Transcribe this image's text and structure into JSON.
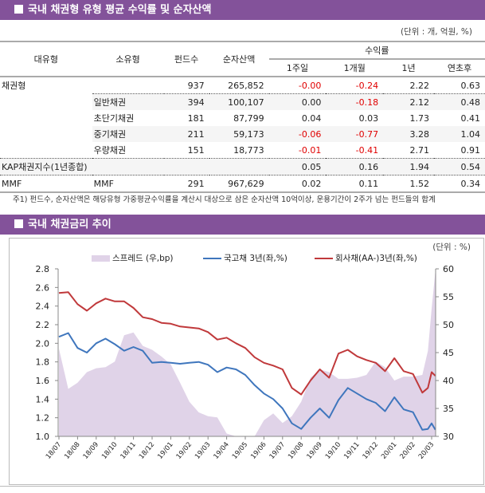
{
  "section1": {
    "title": "국내 채권형 유형 평균 수익률 및 순자산액",
    "unit": "(단위 : 개, 억원, %)",
    "headers": {
      "major": "대유형",
      "minor": "소유형",
      "funds": "펀드수",
      "assets": "순자산액",
      "return": "수익률",
      "w1": "1주일",
      "m1": "1개월",
      "y1": "1년",
      "ytd": "연초후"
    },
    "rows": [
      {
        "major": "채권형",
        "minor": "",
        "funds": "937",
        "assets": "265,852",
        "w1": "-0.00",
        "m1": "-0.24",
        "y1": "2.22",
        "ytd": "0.63"
      },
      {
        "major": "",
        "minor": "일반채권",
        "funds": "394",
        "assets": "100,107",
        "w1": "0.00",
        "m1": "-0.18",
        "y1": "2.12",
        "ytd": "0.48"
      },
      {
        "major": "",
        "minor": "초단기채권",
        "funds": "181",
        "assets": "87,799",
        "w1": "0.04",
        "m1": "0.03",
        "y1": "1.73",
        "ytd": "0.41"
      },
      {
        "major": "",
        "minor": "중기채권",
        "funds": "211",
        "assets": "59,173",
        "w1": "-0.06",
        "m1": "-0.77",
        "y1": "3.28",
        "ytd": "1.04"
      },
      {
        "major": "",
        "minor": "우량채권",
        "funds": "151",
        "assets": "18,773",
        "w1": "-0.01",
        "m1": "-0.41",
        "y1": "2.71",
        "ytd": "0.91"
      },
      {
        "major": "KAP채권지수(1년종합)",
        "minor": "",
        "funds": "",
        "assets": "",
        "w1": "0.05",
        "m1": "0.16",
        "y1": "1.94",
        "ytd": "0.54"
      },
      {
        "major": "MMF",
        "minor": "MMF",
        "funds": "291",
        "assets": "967,629",
        "w1": "0.02",
        "m1": "0.11",
        "y1": "1.52",
        "ytd": "0.34"
      }
    ],
    "footnote": "주1) 펀드수, 순자산액은 해당유형 가중평균수익률을 계산시 대상으로 삼은 순자산액 10억이상, 운용기간이 2주가 넘는 펀드들의 합계",
    "negative_color": "#e00000"
  },
  "section2": {
    "title": "국내 채권금리 추이",
    "unit": "(단위 : %)"
  },
  "colors": {
    "header_bar": "#83529a",
    "spread": "#e0d3e8",
    "gov": "#3f76bd",
    "corp": "#c0393b"
  },
  "chart_data": {
    "type": "line",
    "x_tick_labels": [
      "18/07",
      "18/08",
      "18/09",
      "18/10",
      "18/11",
      "18/12",
      "19/01",
      "19/02",
      "19/03",
      "19/04",
      "19/05",
      "19/06",
      "19/07",
      "19/08",
      "19/09",
      "19/10",
      "19/11",
      "19/12",
      "20/01",
      "20/02",
      "20/03"
    ],
    "y_left": {
      "range": [
        1.0,
        2.8
      ],
      "ticks": [
        "1.0",
        "1.2",
        "1.4",
        "1.6",
        "1.8",
        "2.0",
        "2.2",
        "2.4",
        "2.6",
        "2.8"
      ]
    },
    "y_right": {
      "range": [
        30,
        60
      ],
      "ticks": [
        "30",
        "35",
        "40",
        "45",
        "50",
        "55",
        "60"
      ]
    },
    "grid": false,
    "legend_position": "top",
    "x": [
      "2018-07-01",
      "2018-07-16",
      "2018-08-01",
      "2018-08-16",
      "2018-09-01",
      "2018-09-16",
      "2018-10-01",
      "2018-10-16",
      "2018-11-01",
      "2018-11-16",
      "2018-12-01",
      "2018-12-16",
      "2019-01-01",
      "2019-01-16",
      "2019-02-01",
      "2019-02-16",
      "2019-03-01",
      "2019-03-16",
      "2019-04-01",
      "2019-04-16",
      "2019-05-01",
      "2019-05-16",
      "2019-06-01",
      "2019-06-16",
      "2019-07-01",
      "2019-07-16",
      "2019-08-01",
      "2019-08-16",
      "2019-09-01",
      "2019-09-16",
      "2019-10-01",
      "2019-10-16",
      "2019-11-01",
      "2019-11-16",
      "2019-12-01",
      "2019-12-16",
      "2020-01-01",
      "2020-01-16",
      "2020-02-01",
      "2020-02-16",
      "2020-02-25",
      "2020-03-01",
      "2020-03-07"
    ],
    "series": [
      {
        "name": "스프레드 (우,bp)",
        "axis": "right",
        "kind": "area",
        "values": [
          45.7,
          38.5,
          39.6,
          41.5,
          42.2,
          42.4,
          43.4,
          48.1,
          48.6,
          46.2,
          45.5,
          44.3,
          42.9,
          39.6,
          36.2,
          34.3,
          33.6,
          33.4,
          30.5,
          29.6,
          29,
          29,
          32.9,
          34.1,
          32.4,
          33.6,
          36.2,
          40.5,
          42.0,
          41.5,
          40.3,
          40.3,
          40.5,
          41.0,
          43.4,
          42.4,
          40.0,
          40.7,
          40.7,
          41.0,
          45.3,
          52.9,
          59.6
        ]
      },
      {
        "name": "국고채 3년(좌,%)",
        "axis": "left",
        "kind": "line",
        "values": [
          2.07,
          2.11,
          1.95,
          1.9,
          2.0,
          2.05,
          1.99,
          1.92,
          1.96,
          1.92,
          1.79,
          1.8,
          1.79,
          1.78,
          1.79,
          1.8,
          1.77,
          1.69,
          1.74,
          1.72,
          1.66,
          1.55,
          1.46,
          1.4,
          1.3,
          1.14,
          1.08,
          1.2,
          1.3,
          1.2,
          1.39,
          1.52,
          1.46,
          1.4,
          1.36,
          1.27,
          1.42,
          1.29,
          1.26,
          1.07,
          1.08,
          1.14,
          1.07
        ]
      },
      {
        "name": "회사채(AA-)3년(좌,%)",
        "axis": "left",
        "kind": "line",
        "values": [
          2.54,
          2.55,
          2.42,
          2.35,
          2.43,
          2.48,
          2.45,
          2.45,
          2.38,
          2.28,
          2.26,
          2.22,
          2.21,
          2.18,
          2.17,
          2.16,
          2.12,
          2.04,
          2.06,
          2.0,
          1.95,
          1.85,
          1.79,
          1.76,
          1.72,
          1.52,
          1.45,
          1.6,
          1.72,
          1.63,
          1.89,
          1.93,
          1.86,
          1.82,
          1.79,
          1.7,
          1.84,
          1.7,
          1.67,
          1.47,
          1.52,
          1.69,
          1.65
        ]
      }
    ]
  }
}
